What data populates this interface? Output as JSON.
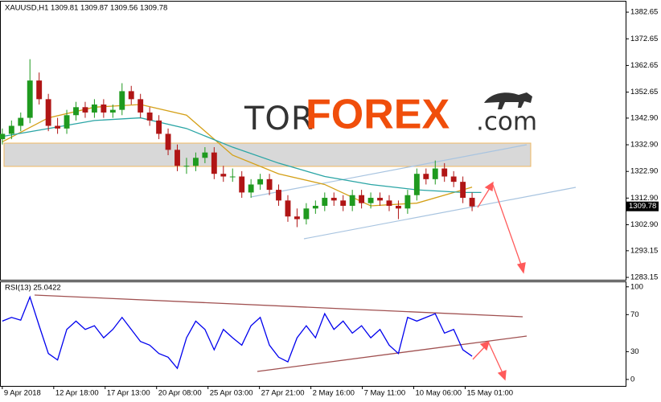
{
  "chart_data": [
    {
      "type": "candlestick",
      "title": "XAUUSD,H1 1309.81 1309.87 1309.56 1309.78",
      "x": [
        0,
        12,
        24,
        36,
        48,
        60,
        72,
        84,
        96,
        108,
        120,
        132,
        144,
        156,
        168,
        180,
        192,
        204,
        216,
        228,
        240,
        252,
        264,
        276,
        288,
        300,
        312,
        324,
        336,
        348,
        360,
        372,
        384,
        396,
        408,
        420,
        432,
        444,
        456,
        468,
        480,
        492,
        504,
        516,
        528,
        540,
        552,
        564,
        576,
        588,
        600,
        612
      ],
      "open": [
        1335,
        1337,
        1340,
        1343,
        1357,
        1350,
        1340,
        1339,
        1344,
        1347,
        1345,
        1348,
        1345,
        1346,
        1353,
        1350,
        1345,
        1342,
        1337,
        1331,
        1325,
        1325,
        1328,
        1330,
        1322,
        1321,
        1321,
        1315,
        1318,
        1320,
        1316,
        1312,
        1306,
        1305,
        1309,
        1310,
        1313,
        1312,
        1310,
        1314,
        1311,
        1313,
        1312,
        1310,
        1309,
        1314,
        1322,
        1320,
        1324,
        1321,
        1319,
        1313
      ],
      "high": [
        1339,
        1342,
        1345,
        1365,
        1360,
        1352,
        1343,
        1346,
        1349,
        1349,
        1350,
        1350,
        1348,
        1356,
        1355,
        1352,
        1347,
        1344,
        1339,
        1333,
        1328,
        1330,
        1332,
        1332,
        1325,
        1324,
        1323,
        1320,
        1322,
        1322,
        1318,
        1314,
        1309,
        1311,
        1312,
        1315,
        1315,
        1314,
        1316,
        1316,
        1315,
        1315,
        1314,
        1312,
        1316,
        1324,
        1324,
        1327,
        1326,
        1323,
        1321,
        1315
      ],
      "low": [
        1333,
        1335,
        1338,
        1341,
        1348,
        1338,
        1337,
        1337,
        1342,
        1343,
        1343,
        1343,
        1343,
        1344,
        1348,
        1343,
        1340,
        1335,
        1329,
        1323,
        1322,
        1323,
        1326,
        1320,
        1319,
        1319,
        1313,
        1313,
        1316,
        1314,
        1310,
        1304,
        1302,
        1303,
        1307,
        1308,
        1310,
        1308,
        1308,
        1309,
        1309,
        1310,
        1308,
        1305,
        1307,
        1312,
        1318,
        1318,
        1319,
        1317,
        1311,
        1308
      ],
      "close": [
        1337,
        1340,
        1343,
        1357,
        1350,
        1340,
        1339,
        1344,
        1347,
        1345,
        1348,
        1345,
        1346,
        1353,
        1350,
        1345,
        1342,
        1337,
        1331,
        1325,
        1325,
        1328,
        1330,
        1322,
        1321,
        1321,
        1315,
        1318,
        1320,
        1316,
        1312,
        1306,
        1305,
        1309,
        1310,
        1313,
        1312,
        1310,
        1314,
        1311,
        1313,
        1312,
        1310,
        1309,
        1314,
        1322,
        1320,
        1324,
        1321,
        1319,
        1313,
        1309.78
      ],
      "up_color": "#1f9a1f",
      "down_color": "#b01515",
      "overlays": [
        {
          "color": "#d4a017",
          "x": [
            0,
            60,
            120,
            180,
            240,
            300,
            360,
            420,
            480,
            540,
            600,
            612
          ],
          "values": [
            1334,
            1343,
            1347,
            1348,
            1344,
            1329,
            1322,
            1318,
            1310,
            1311,
            1316,
            1317
          ]
        },
        {
          "color": "#2aa5a5",
          "x": [
            0,
            60,
            120,
            180,
            240,
            300,
            360,
            420,
            480,
            540,
            600,
            624
          ],
          "values": [
            1336,
            1339,
            1342,
            1343,
            1339,
            1332,
            1326,
            1321,
            1318,
            1316,
            1315,
            1315
          ]
        }
      ],
      "xlim": [
        -3,
        812
      ],
      "ylim": [
        1282.25,
        1386.6
      ],
      "yticks": [
        1382.65,
        1372.65,
        1362.65,
        1352.65,
        {
          "value": 1342.9,
          "label": "1342.90"
        },
        {
          "value": 1332.9,
          "label": "1332.90"
        },
        {
          "value": 1322.9,
          "label": "1322.90"
        },
        {
          "value": 1312.9,
          "label": "1312.90"
        },
        {
          "value": 1302.9,
          "label": "1302.90"
        },
        1293.15,
        1283.15
      ]
    },
    {
      "type": "line",
      "title": "RSI(13) 25.0422",
      "x": [
        0,
        12,
        24,
        36,
        48,
        60,
        72,
        84,
        96,
        108,
        120,
        132,
        144,
        156,
        168,
        180,
        192,
        204,
        216,
        228,
        240,
        252,
        264,
        276,
        288,
        300,
        312,
        324,
        336,
        348,
        360,
        372,
        384,
        396,
        408,
        420,
        432,
        444,
        456,
        468,
        480,
        492,
        504,
        516,
        528,
        540,
        552,
        564,
        576,
        588,
        600,
        612
      ],
      "series": [
        {
          "color": "#0000ee",
          "values": [
            63,
            67,
            64,
            89,
            58,
            28,
            21,
            54,
            63,
            54,
            58,
            45,
            54,
            67,
            54,
            41,
            37,
            28,
            24,
            12,
            45,
            63,
            54,
            32,
            54,
            45,
            37,
            58,
            67,
            37,
            24,
            19,
            45,
            58,
            45,
            71,
            54,
            63,
            50,
            58,
            45,
            54,
            37,
            28,
            67,
            63,
            67,
            71,
            50,
            54,
            32,
            25.0422
          ]
        }
      ],
      "xlim": [
        -3,
        812
      ],
      "xticks": [
        {
          "value": 0,
          "label": "9 Apr 2018"
        },
        {
          "value": 67,
          "label": "12 Apr 18:00"
        },
        {
          "value": 134,
          "label": "17 Apr 13:00"
        },
        {
          "value": 201,
          "label": "20 Apr 08:00"
        },
        {
          "value": 268,
          "label": "25 Apr 03:00"
        },
        {
          "value": 335,
          "label": "27 Apr 21:00"
        },
        {
          "value": 402,
          "label": "2 May 16:00"
        },
        {
          "value": 469,
          "label": "7 May 11:00"
        },
        {
          "value": 536,
          "label": "10 May 06:00"
        },
        {
          "value": 603,
          "label": "15 May 01:00"
        }
      ],
      "ylim": [
        -7,
        105
      ],
      "yticks": [
        100,
        70,
        30,
        0
      ]
    }
  ],
  "logo": {
    "left": "TOR",
    "brand": "FOREX",
    "suffix": ".com"
  }
}
